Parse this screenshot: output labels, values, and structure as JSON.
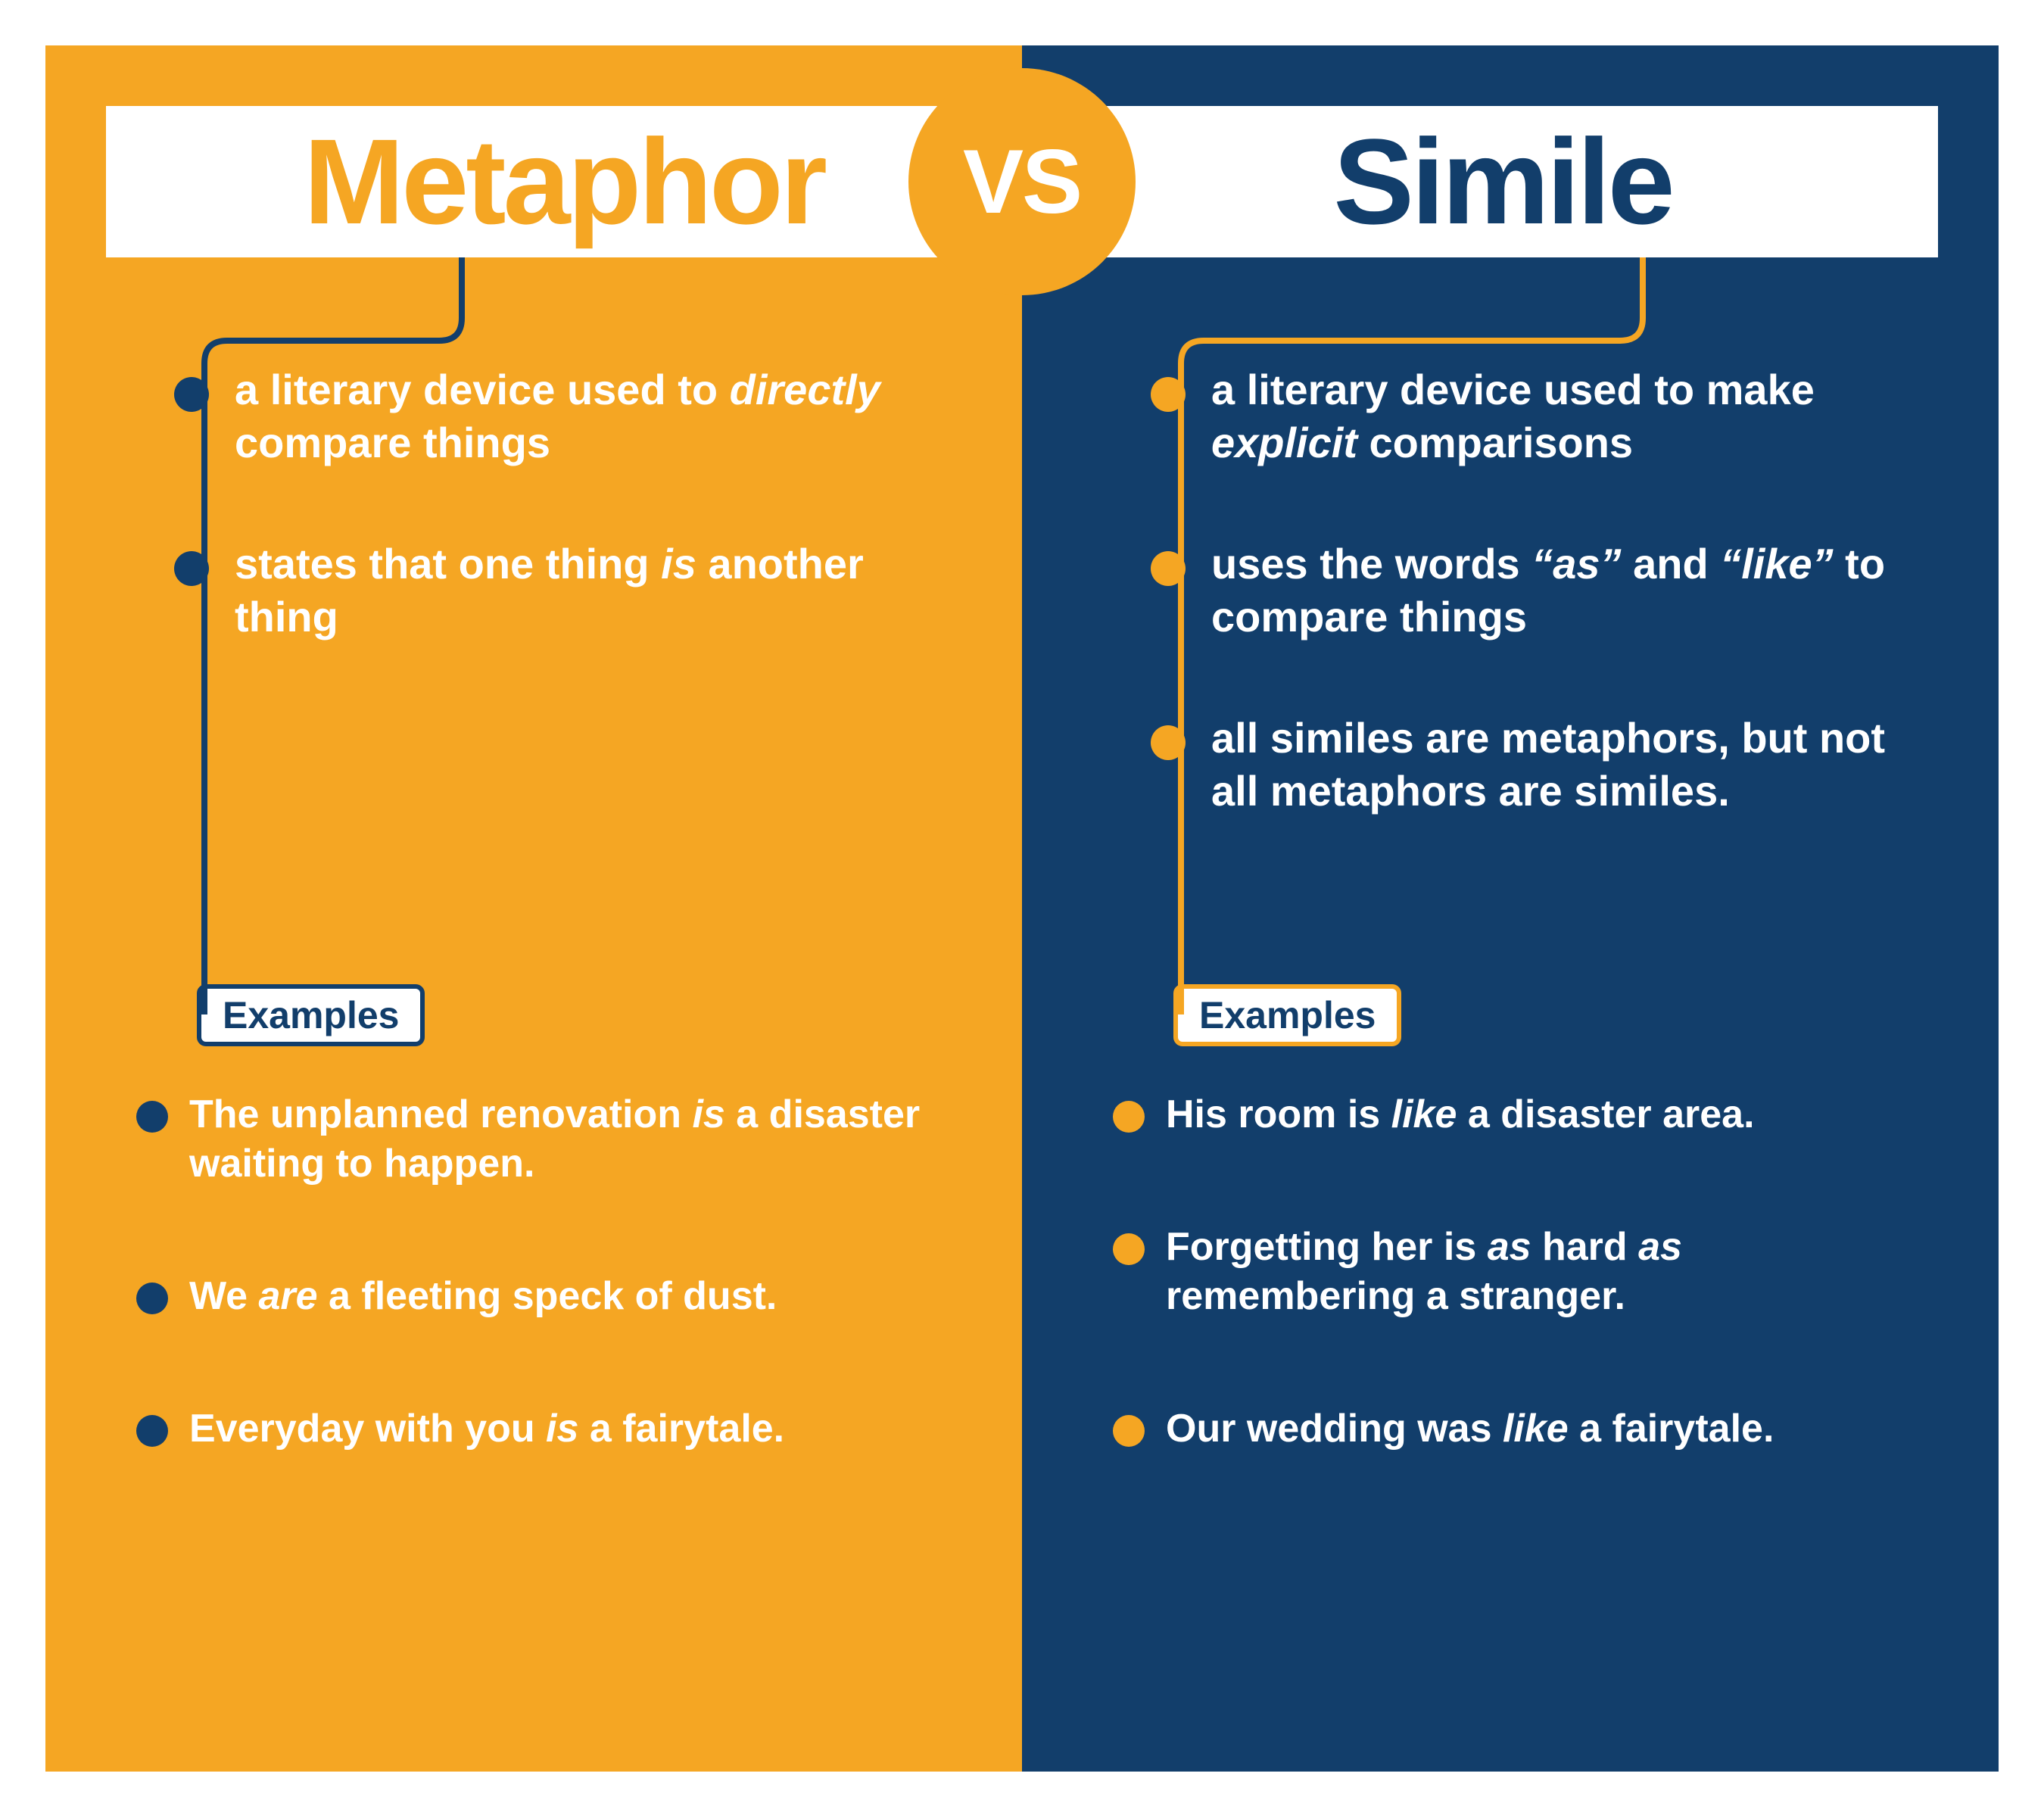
{
  "colors": {
    "left_bg": "#f5a623",
    "right_bg": "#123e6b",
    "white": "#ffffff"
  },
  "vs_label": "VS",
  "left": {
    "title": "Metaphor",
    "definitions": [
      "a literary device used to <em>directly</em> compare things",
      "states that one thing <em>is</em> another thing"
    ],
    "examples_label": "Examples",
    "examples": [
      "The unplanned renovation <em>is</em> a disaster waiting to happen.",
      "We <em>are</em> a fleeting speck of dust.",
      "Everyday with you <em>is</em> a fairytale."
    ],
    "connector_color": "#123e6b"
  },
  "right": {
    "title": "Simile",
    "definitions": [
      "a literary device used to make <em>explicit</em> comparisons",
      "uses the words <em>“as”</em> and <em>“like”</em> to compare things",
      "all similes are metaphors, but not all metaphors are similes."
    ],
    "examples_label": "Examples",
    "examples": [
      "His room is <em>like</em> a disaster area.",
      "Forgetting her is <em>as</em> hard <em>as</em> remembering a stranger.",
      "Our wedding was <em>like</em> a fairytale."
    ],
    "connector_color": "#f5a623"
  },
  "typography": {
    "title_fontsize": 160,
    "title_weight": 900,
    "vs_fontsize": 120,
    "def_fontsize": 56,
    "example_fontsize": 52,
    "label_fontsize": 50
  }
}
